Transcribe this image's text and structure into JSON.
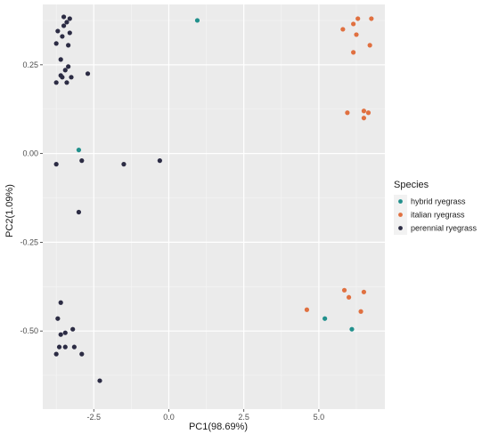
{
  "chart_data": {
    "type": "scatter",
    "xlabel": "PC1(98.69%)",
    "ylabel": "PC2(1.09%)",
    "xlim": [
      -4.2,
      7.2
    ],
    "ylim": [
      -0.72,
      0.42
    ],
    "x_ticks": [
      -2.5,
      0.0,
      2.5,
      5.0
    ],
    "x_tick_labels": [
      "-2.5",
      "0.0",
      "2.5",
      "5.0"
    ],
    "y_ticks": [
      0.25,
      0.0,
      -0.25,
      -0.5
    ],
    "y_tick_labels": [
      "0.25",
      "0.00",
      "-0.25",
      "-0.50"
    ],
    "grid": true,
    "legend": {
      "title": "Species",
      "position": "right"
    },
    "series": [
      {
        "name": "hybrid ryegrass",
        "color": "#21908c",
        "points": [
          {
            "x": 0.95,
            "y": 0.375
          },
          {
            "x": -3.0,
            "y": 0.01
          },
          {
            "x": 5.2,
            "y": -0.465
          },
          {
            "x": 6.1,
            "y": -0.495
          }
        ]
      },
      {
        "name": "italian ryegrass",
        "color": "#e07040",
        "points": [
          {
            "x": 5.8,
            "y": 0.35
          },
          {
            "x": 6.15,
            "y": 0.365
          },
          {
            "x": 6.3,
            "y": 0.38
          },
          {
            "x": 6.75,
            "y": 0.38
          },
          {
            "x": 6.25,
            "y": 0.335
          },
          {
            "x": 6.7,
            "y": 0.305
          },
          {
            "x": 6.15,
            "y": 0.285
          },
          {
            "x": 5.95,
            "y": 0.115
          },
          {
            "x": 6.5,
            "y": 0.12
          },
          {
            "x": 6.65,
            "y": 0.115
          },
          {
            "x": 6.5,
            "y": 0.1
          },
          {
            "x": 5.85,
            "y": -0.385
          },
          {
            "x": 6.5,
            "y": -0.39
          },
          {
            "x": 6.0,
            "y": -0.405
          },
          {
            "x": 4.6,
            "y": -0.44
          },
          {
            "x": 6.4,
            "y": -0.445
          }
        ]
      },
      {
        "name": "perennial ryegrass",
        "color": "#2c2c44",
        "points": [
          {
            "x": -3.5,
            "y": 0.385
          },
          {
            "x": -3.4,
            "y": 0.37
          },
          {
            "x": -3.5,
            "y": 0.36
          },
          {
            "x": -3.3,
            "y": 0.38
          },
          {
            "x": -3.7,
            "y": 0.345
          },
          {
            "x": -3.55,
            "y": 0.33
          },
          {
            "x": -3.3,
            "y": 0.34
          },
          {
            "x": -3.75,
            "y": 0.31
          },
          {
            "x": -3.35,
            "y": 0.305
          },
          {
            "x": -3.6,
            "y": 0.265
          },
          {
            "x": -3.35,
            "y": 0.245
          },
          {
            "x": -3.45,
            "y": 0.235
          },
          {
            "x": -3.6,
            "y": 0.22
          },
          {
            "x": -3.55,
            "y": 0.215
          },
          {
            "x": -3.25,
            "y": 0.215
          },
          {
            "x": -3.75,
            "y": 0.2
          },
          {
            "x": -3.4,
            "y": 0.2
          },
          {
            "x": -2.7,
            "y": 0.225
          },
          {
            "x": -3.75,
            "y": -0.03
          },
          {
            "x": -2.9,
            "y": -0.02
          },
          {
            "x": -1.5,
            "y": -0.03
          },
          {
            "x": -0.3,
            "y": -0.02
          },
          {
            "x": -3.0,
            "y": -0.165
          },
          {
            "x": -3.6,
            "y": -0.42
          },
          {
            "x": -3.7,
            "y": -0.465
          },
          {
            "x": -3.45,
            "y": -0.505
          },
          {
            "x": -3.2,
            "y": -0.495
          },
          {
            "x": -3.6,
            "y": -0.51
          },
          {
            "x": -3.65,
            "y": -0.545
          },
          {
            "x": -3.45,
            "y": -0.545
          },
          {
            "x": -3.15,
            "y": -0.545
          },
          {
            "x": -3.75,
            "y": -0.565
          },
          {
            "x": -2.9,
            "y": -0.565
          },
          {
            "x": -2.3,
            "y": -0.64
          }
        ]
      }
    ]
  }
}
